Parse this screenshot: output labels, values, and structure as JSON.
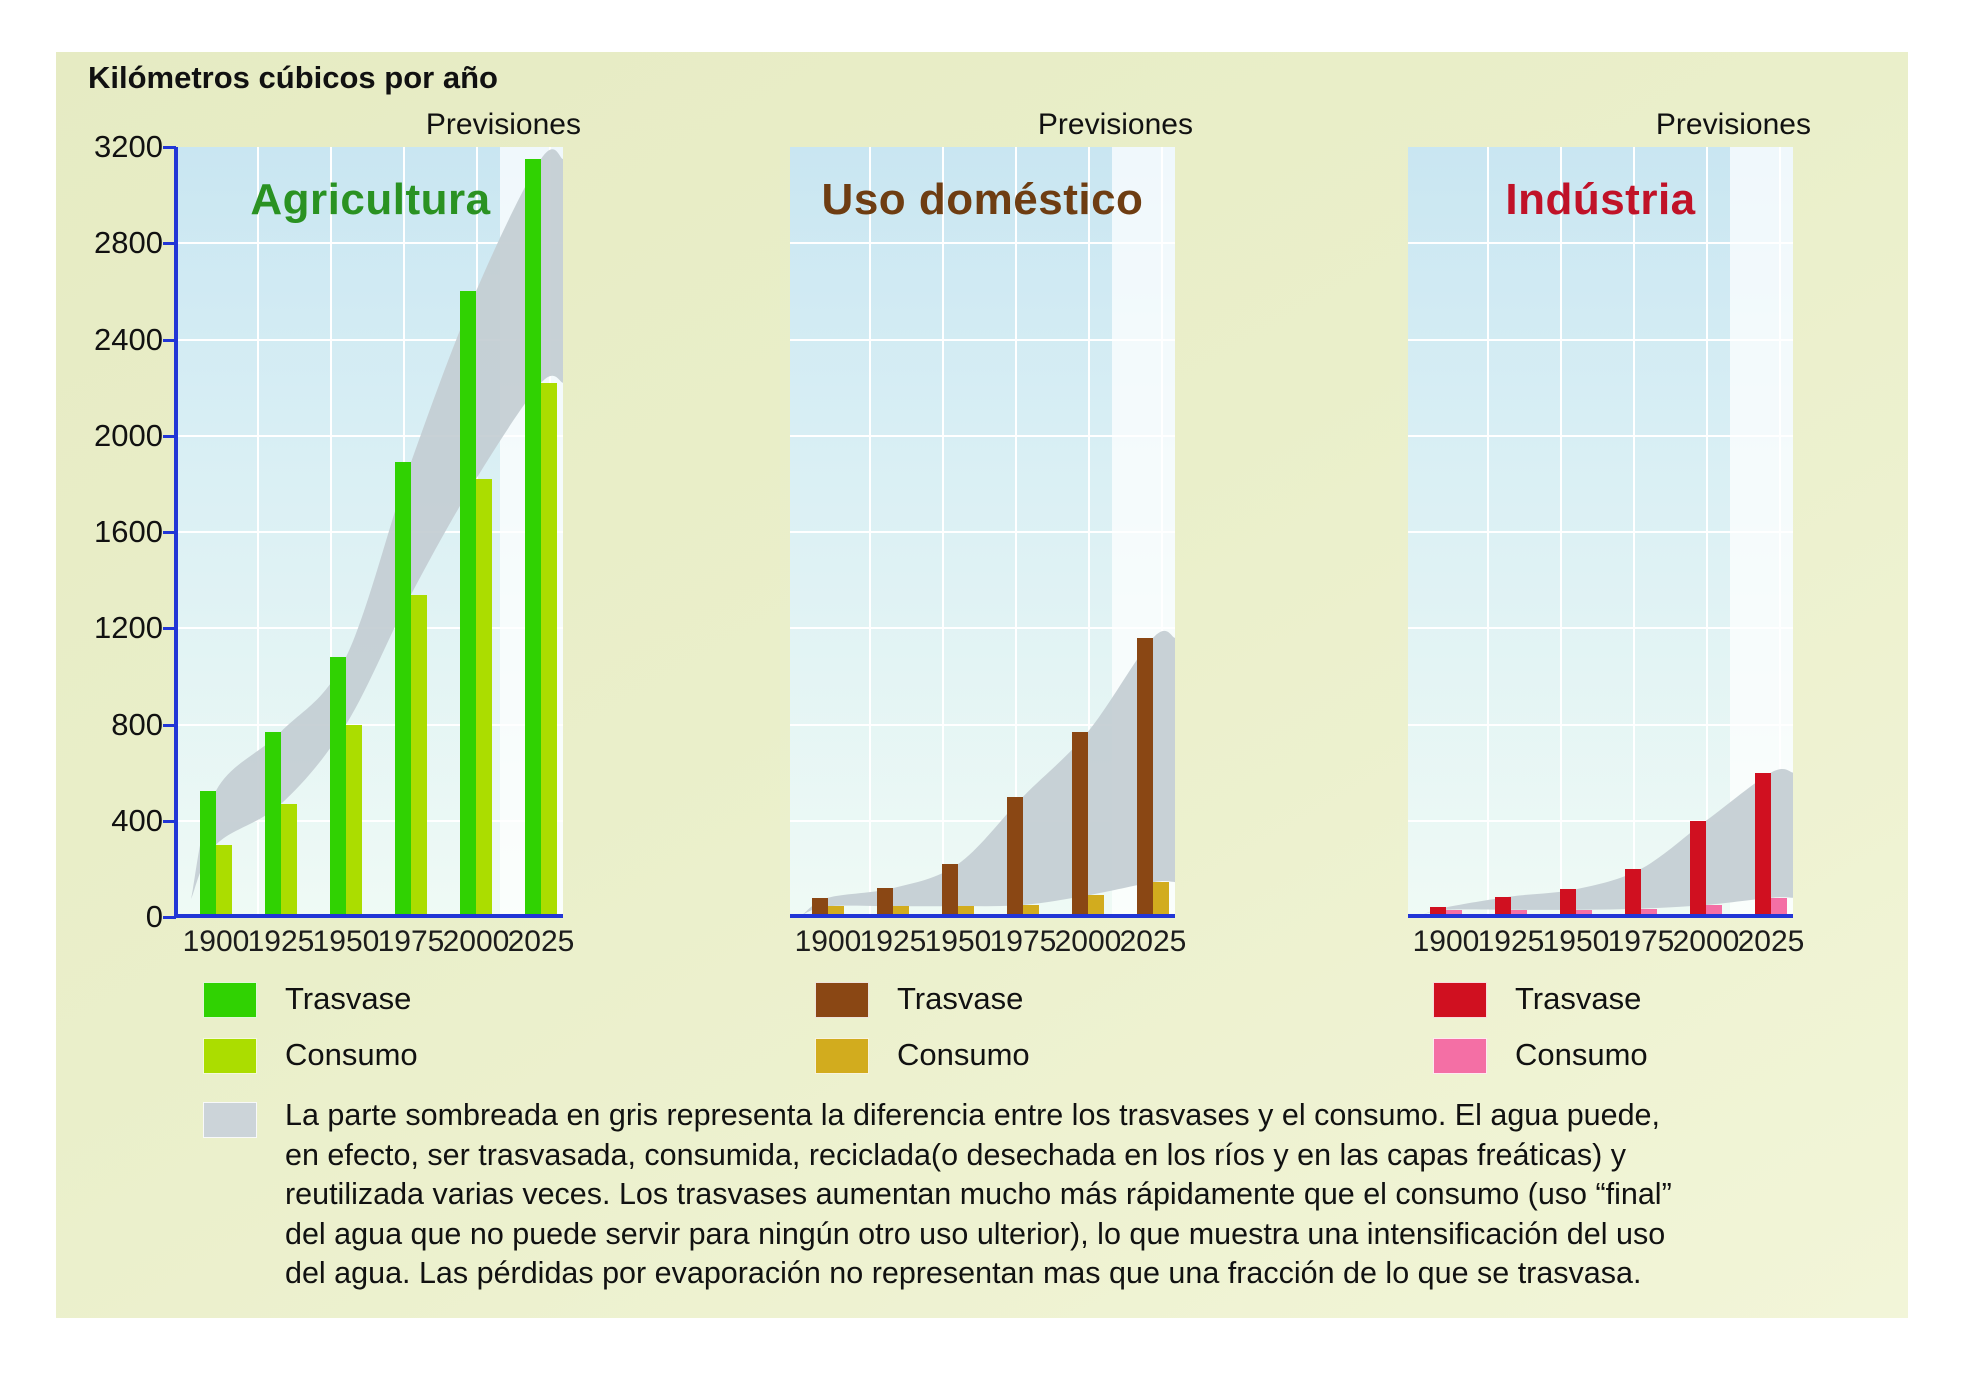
{
  "page_title": "Kilómetros cúbicos por año",
  "forecast_label": "Previsiones",
  "chart_data": {
    "type": "bar",
    "title": "Kilómetros cúbicos por año",
    "categories": [
      "1900",
      "1925",
      "1950",
      "1975",
      "2000",
      "2025"
    ],
    "ylim": [
      0,
      3200
    ],
    "y_ticks": [
      3200,
      2800,
      2400,
      2000,
      1600,
      1200,
      800,
      400,
      0
    ],
    "grid": true,
    "forecast_zone_label": "Previsiones",
    "band_color": "#c3cdd2",
    "band_legend_color": "#ccd4d9",
    "axis_color": "#2236d6",
    "charts": [
      {
        "title": "Agricultura",
        "title_color": "#2a9222",
        "series": [
          {
            "name": "Trasvase",
            "color": "#30d202",
            "values": [
              525,
              770,
              1080,
              1890,
              2600,
              3150
            ]
          },
          {
            "name": "Consumo",
            "color": "#abdd00",
            "values": [
              300,
              470,
              800,
              1340,
              1820,
              2220
            ]
          }
        ]
      },
      {
        "title": "Uso doméstico",
        "title_color": "#6e3d12",
        "series": [
          {
            "name": "Trasvase",
            "color": "#8a4714",
            "values": [
              80,
              120,
              220,
              500,
              770,
              1160
            ]
          },
          {
            "name": "Consumo",
            "color": "#d2ac1e",
            "values": [
              45,
              45,
              45,
              50,
              90,
              145
            ]
          }
        ]
      },
      {
        "title": "Indústria",
        "title_color": "#c01228",
        "series": [
          {
            "name": "Trasvase",
            "color": "#d01020",
            "values": [
              40,
              85,
              115,
              200,
              400,
              600
            ]
          },
          {
            "name": "Consumo",
            "color": "#f46fa5",
            "values": [
              30,
              30,
              30,
              35,
              50,
              80
            ]
          }
        ]
      }
    ]
  },
  "note_lines": [
    "La parte sombreada en gris representa la diferencia entre los trasvases y el consumo. El agua puede,",
    "en efecto, ser trasvasada, consumida, reciclada(o desechada en los ríos y en las capas freáticas) y",
    "reutilizada varias veces. Los trasvases aumentan mucho más rápidamente que el consumo (uso “final”",
    "del agua que no puede servir para ningún otro uso ulterior), lo que muestra una intensificación del uso",
    "del agua. Las pérdidas por evaporación no representan mas que una fracción de lo que se trasvasa."
  ]
}
